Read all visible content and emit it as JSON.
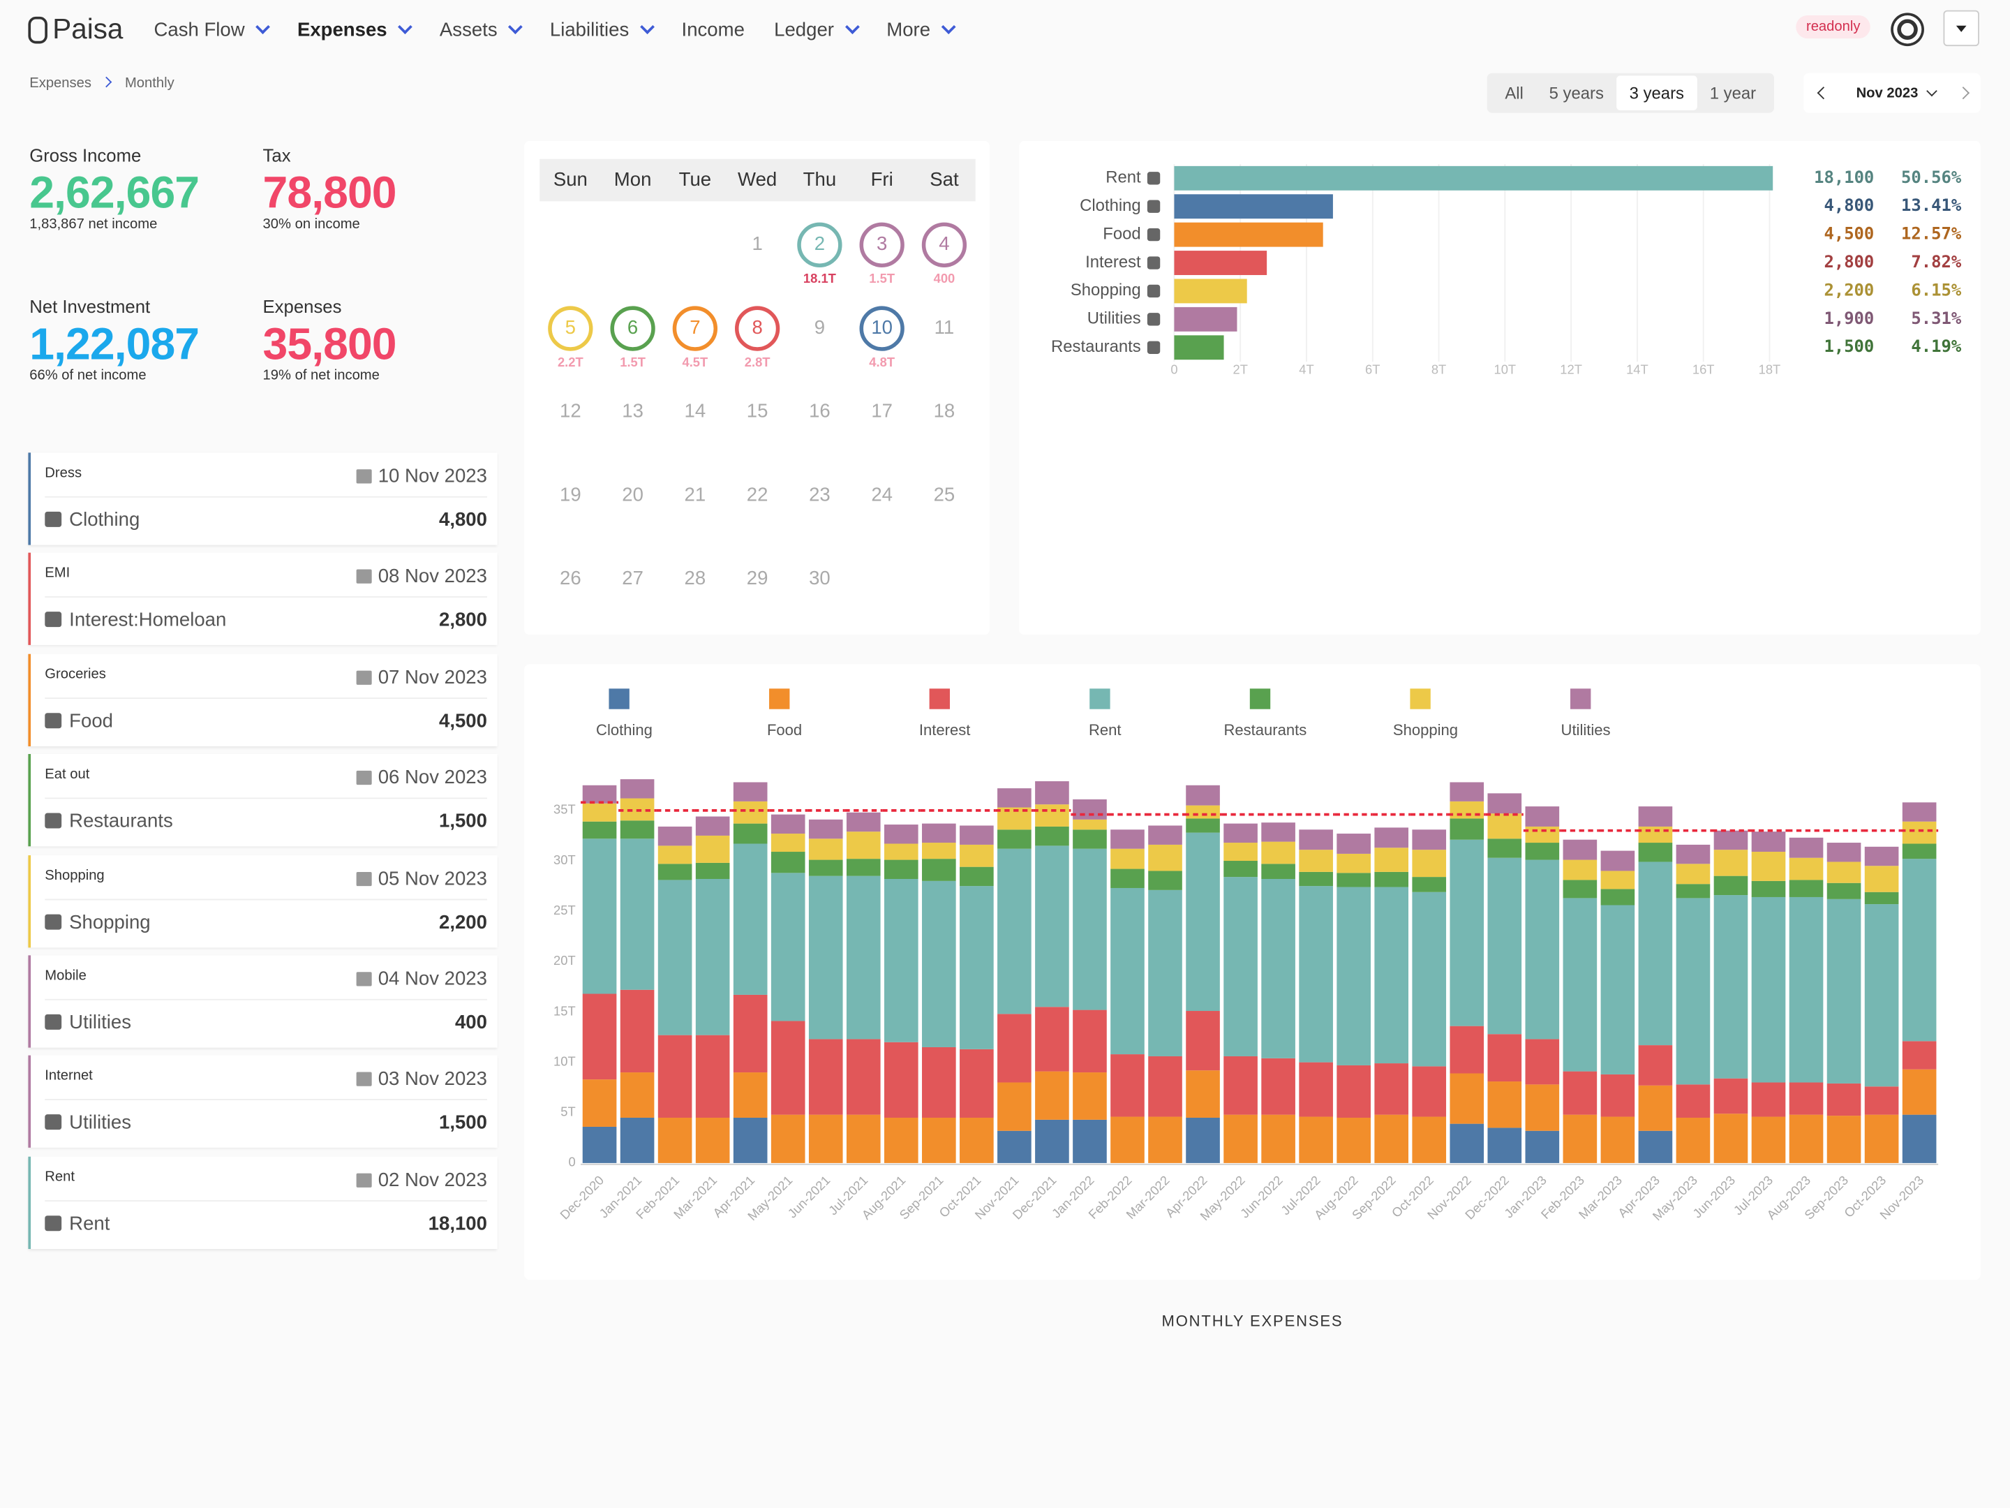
{
  "nav": {
    "brand": "Paisa",
    "items": [
      {
        "label": "Cash Flow",
        "menu": true
      },
      {
        "label": "Expenses",
        "menu": true,
        "active": true
      },
      {
        "label": "Assets",
        "menu": true
      },
      {
        "label": "Liabilities",
        "menu": true
      },
      {
        "label": "Income",
        "menu": false
      },
      {
        "label": "Ledger",
        "menu": true
      },
      {
        "label": "More",
        "menu": true
      }
    ],
    "badge": "readonly"
  },
  "breadcrumb": [
    "Expenses",
    "Monthly"
  ],
  "periods": {
    "options": [
      "All",
      "5 years",
      "3 years",
      "1 year"
    ],
    "active": 2
  },
  "month": "Nov 2023",
  "stats": [
    {
      "label": "Gross Income",
      "value": "2,62,667",
      "note": "1,83,867 net income",
      "color": "#48c78e"
    },
    {
      "label": "Tax",
      "value": "78,800",
      "note": "30% on income",
      "color": "#f14668"
    },
    {
      "label": "Net Investment",
      "value": "1,22,087",
      "note": "66% of net income",
      "color": "#1ba8ec"
    },
    {
      "label": "Expenses",
      "value": "35,800",
      "note": "19% of net income",
      "color": "#f14668"
    }
  ],
  "transactions": [
    {
      "description": "Dress",
      "date": "10 Nov 2023",
      "category": "Clothing",
      "amount": "4,800",
      "color": "#4e79a7"
    },
    {
      "description": "EMI",
      "date": "08 Nov 2023",
      "category": "Interest:Homeloan",
      "amount": "2,800",
      "color": "#e15759"
    },
    {
      "description": "Groceries",
      "date": "07 Nov 2023",
      "category": "Food",
      "amount": "4,500",
      "color": "#f28e2b"
    },
    {
      "description": "Eat out",
      "date": "06 Nov 2023",
      "category": "Restaurants",
      "amount": "1,500",
      "color": "#59a14f"
    },
    {
      "description": "Shopping",
      "date": "05 Nov 2023",
      "category": "Shopping",
      "amount": "2,200",
      "color": "#edc948"
    },
    {
      "description": "Mobile",
      "date": "04 Nov 2023",
      "category": "Utilities",
      "amount": "400",
      "color": "#b07aa1"
    },
    {
      "description": "Internet",
      "date": "03 Nov 2023",
      "category": "Utilities",
      "amount": "1,500",
      "color": "#b07aa1"
    },
    {
      "description": "Rent",
      "date": "02 Nov 2023",
      "category": "Rent",
      "amount": "18,100",
      "color": "#76b7b2"
    }
  ],
  "calendar": {
    "weekdays": [
      "Sun",
      "Mon",
      "Tue",
      "Wed",
      "Thu",
      "Fri",
      "Sat"
    ],
    "days": [
      {
        "day": "1"
      },
      {
        "day": "2",
        "amount": "18.1T",
        "color": "#76b7b2"
      },
      {
        "day": "3",
        "amount": "1.5T",
        "color": "#b07aa1"
      },
      {
        "day": "4",
        "amount": "400",
        "color": "#b07aa1"
      },
      {
        "day": "5",
        "amount": "2.2T",
        "color": "#edc948"
      },
      {
        "day": "6",
        "amount": "1.5T",
        "color": "#59a14f"
      },
      {
        "day": "7",
        "amount": "4.5T",
        "color": "#f28e2b"
      },
      {
        "day": "8",
        "amount": "2.8T",
        "color": "#e15759"
      },
      {
        "day": "9"
      },
      {
        "day": "10",
        "amount": "4.8T",
        "color": "#4e79a7"
      },
      {
        "day": "11"
      },
      {
        "day": "12"
      },
      {
        "day": "13"
      },
      {
        "day": "14"
      },
      {
        "day": "15"
      },
      {
        "day": "16"
      },
      {
        "day": "17"
      },
      {
        "day": "18"
      },
      {
        "day": "19"
      },
      {
        "day": "20"
      },
      {
        "day": "21"
      },
      {
        "day": "22"
      },
      {
        "day": "23"
      },
      {
        "day": "24"
      },
      {
        "day": "25"
      },
      {
        "day": "26"
      },
      {
        "day": "27"
      },
      {
        "day": "28"
      },
      {
        "day": "29"
      },
      {
        "day": "30"
      }
    ]
  },
  "chart_data": [
    {
      "type": "hbar",
      "categories": [
        "Rent",
        "Clothing",
        "Food",
        "Interest",
        "Shopping",
        "Utilities",
        "Restaurants"
      ],
      "values": [
        18100,
        4800,
        4500,
        2800,
        2200,
        1900,
        1500
      ],
      "value_labels": [
        "18,100",
        "4,800",
        "4,500",
        "2,800",
        "2,200",
        "1,900",
        "1,500"
      ],
      "shares": [
        "50.56%",
        "13.41%",
        "12.57%",
        "7.82%",
        "6.15%",
        "5.31%",
        "4.19%"
      ],
      "colors": [
        "#76b7b2",
        "#4e79a7",
        "#f28e2b",
        "#e15759",
        "#edc948",
        "#b07aa1",
        "#59a14f"
      ],
      "xlim": [
        0,
        18100
      ],
      "xticks": [
        0,
        {
          "value": 2000,
          "label": "2T"
        },
        {
          "value": 4000,
          "label": "4T"
        },
        {
          "value": 6000,
          "label": "6T"
        },
        {
          "value": 8000,
          "label": "8T"
        },
        {
          "value": 10000,
          "label": "10T"
        },
        {
          "value": 12000,
          "label": "12T"
        },
        {
          "value": 14000,
          "label": "14T"
        },
        {
          "value": 16000,
          "label": "16T"
        },
        {
          "value": 18000,
          "label": "18T"
        }
      ],
      "grid": true
    },
    {
      "type": "stacked_bar",
      "title": "MONTHLY EXPENSES",
      "categories": [
        "Dec-2020",
        "Jan-2021",
        "Feb-2021",
        "Mar-2021",
        "Apr-2021",
        "May-2021",
        "Jun-2021",
        "Jul-2021",
        "Aug-2021",
        "Sep-2021",
        "Oct-2021",
        "Nov-2021",
        "Dec-2021",
        "Jan-2022",
        "Feb-2022",
        "Mar-2022",
        "Apr-2022",
        "May-2022",
        "Jun-2022",
        "Jul-2022",
        "Aug-2022",
        "Sep-2022",
        "Oct-2022",
        "Nov-2022",
        "Dec-2022",
        "Jan-2023",
        "Feb-2023",
        "Mar-2023",
        "Apr-2023",
        "May-2023",
        "Jun-2023",
        "Jul-2023",
        "Aug-2023",
        "Sep-2023",
        "Oct-2023",
        "Nov-2023"
      ],
      "series": [
        {
          "name": "Clothing",
          "color": "#4e79a7",
          "values": [
            3600,
            4500,
            0,
            0,
            4500,
            0,
            0,
            0,
            0,
            0,
            0,
            3200,
            4300,
            4300,
            0,
            0,
            4500,
            0,
            0,
            0,
            0,
            0,
            0,
            3900,
            3500,
            3200,
            0,
            0,
            3200,
            0,
            0,
            0,
            0,
            0,
            0,
            4800
          ]
        },
        {
          "name": "Food",
          "color": "#f28e2b",
          "values": [
            4700,
            4500,
            4500,
            4500,
            4500,
            4800,
            4800,
            4800,
            4500,
            4500,
            4500,
            4800,
            4800,
            4700,
            4600,
            4600,
            4700,
            4800,
            4800,
            4600,
            4500,
            4800,
            4600,
            5000,
            4600,
            4600,
            4800,
            4600,
            4500,
            4500,
            4900,
            4600,
            4800,
            4700,
            4800,
            4500
          ]
        },
        {
          "name": "Interest",
          "color": "#e15759",
          "values": [
            8500,
            8200,
            8200,
            8200,
            7700,
            9300,
            7500,
            7500,
            7500,
            7000,
            6800,
            6800,
            6400,
            6200,
            6200,
            6000,
            5900,
            5800,
            5600,
            5400,
            5200,
            5100,
            5000,
            4700,
            4700,
            4500,
            4300,
            4200,
            4000,
            3300,
            3500,
            3400,
            3200,
            3200,
            2800,
            2800
          ]
        },
        {
          "name": "Rent",
          "color": "#76b7b2",
          "values": [
            15400,
            15000,
            15400,
            15500,
            15000,
            14700,
            16200,
            16200,
            16200,
            16500,
            16200,
            16400,
            16000,
            16000,
            16500,
            16500,
            17700,
            17800,
            17800,
            17500,
            17700,
            17500,
            17300,
            18500,
            17500,
            17800,
            17200,
            16800,
            18200,
            18500,
            18200,
            18400,
            18400,
            18300,
            18100,
            18100
          ]
        },
        {
          "name": "Restaurants",
          "color": "#59a14f",
          "values": [
            1700,
            1800,
            1600,
            1600,
            2000,
            2100,
            1600,
            1700,
            1900,
            2200,
            1900,
            1900,
            1900,
            1900,
            1900,
            1900,
            1400,
            1600,
            1500,
            1400,
            1400,
            1500,
            1500,
            2100,
            1900,
            1700,
            1800,
            1600,
            1900,
            1400,
            1900,
            1600,
            1700,
            1600,
            1200,
            1500
          ]
        },
        {
          "name": "Shopping",
          "color": "#edc948",
          "values": [
            1800,
            2200,
            1800,
            2700,
            2200,
            1800,
            2100,
            2700,
            1600,
            1600,
            2200,
            2200,
            2200,
            1000,
            2000,
            2600,
            1300,
            1800,
            2200,
            2200,
            1900,
            2400,
            2700,
            1700,
            2500,
            1600,
            2000,
            1800,
            1600,
            2000,
            2600,
            2900,
            2200,
            2100,
            2600,
            2200
          ]
        },
        {
          "name": "Utilities",
          "color": "#b07aa1",
          "values": [
            1800,
            1900,
            1900,
            1900,
            1900,
            1900,
            1900,
            1900,
            1900,
            1900,
            1900,
            1900,
            2300,
            2000,
            1900,
            1900,
            2000,
            1900,
            1900,
            2000,
            2000,
            2000,
            2000,
            1900,
            2000,
            2000,
            2000,
            2000,
            2000,
            1900,
            1900,
            2000,
            2000,
            1900,
            1900,
            1900
          ]
        }
      ],
      "average": [
        35800,
        35000,
        35000,
        35000,
        35000,
        35000,
        35000,
        35000,
        35000,
        35000,
        35000,
        35000,
        35000,
        34600,
        34600,
        34600,
        34600,
        34600,
        34600,
        34600,
        34600,
        34600,
        34600,
        34600,
        34600,
        33000,
        33000,
        33000,
        33000,
        33000,
        33000,
        33000,
        33000,
        33000,
        33000,
        33000
      ],
      "average_color": "#e8283c",
      "ylim": [
        0,
        39000
      ],
      "yticks": [
        0,
        {
          "value": 5000,
          "label": "5T"
        },
        {
          "value": 10000,
          "label": "10T"
        },
        {
          "value": 15000,
          "label": "15T"
        },
        {
          "value": 20000,
          "label": "20T"
        },
        {
          "value": 25000,
          "label": "25T"
        },
        {
          "value": 30000,
          "label": "30T"
        },
        {
          "value": 35000,
          "label": "35T"
        }
      ],
      "grid": false
    }
  ]
}
